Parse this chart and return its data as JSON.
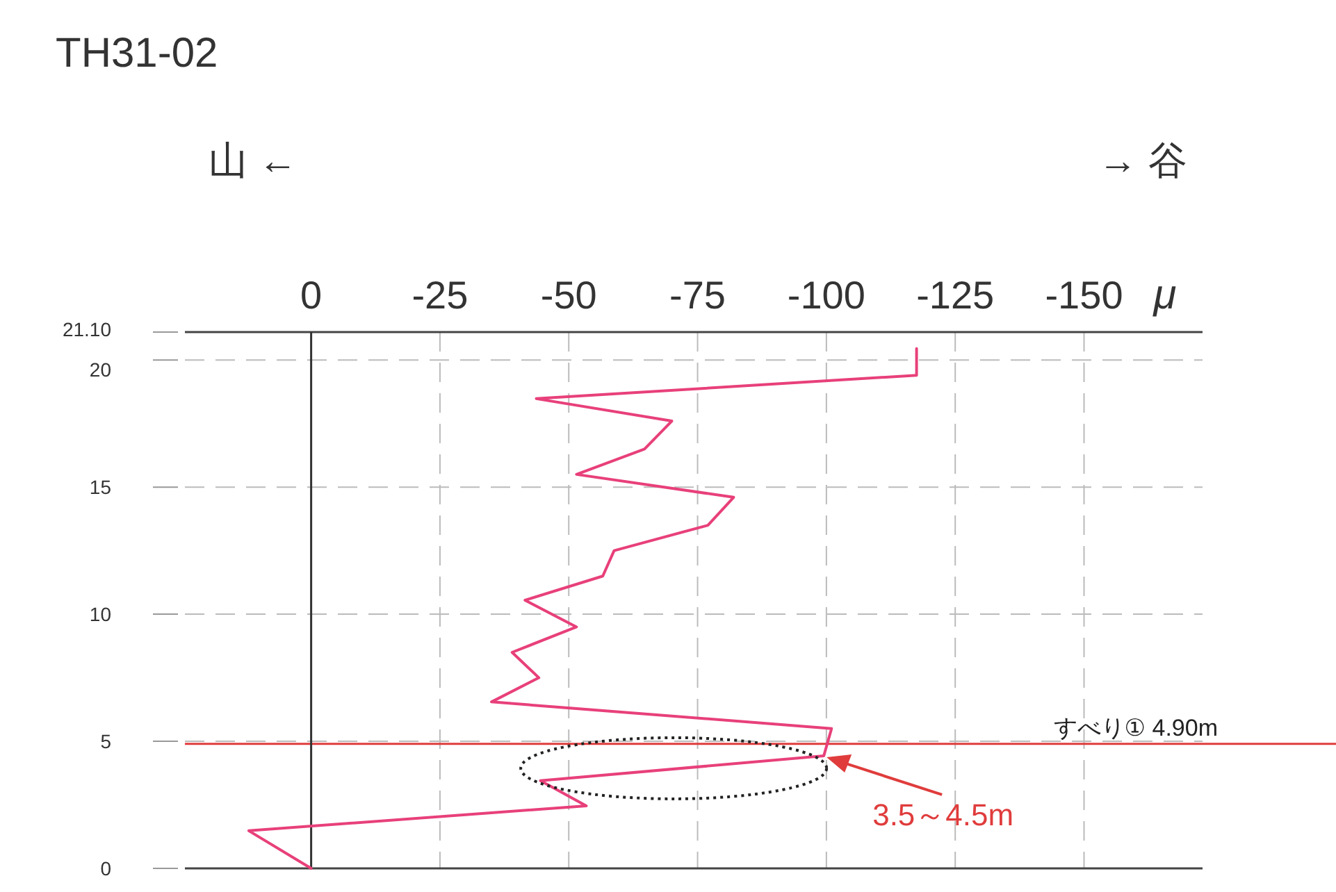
{
  "chart_data": {
    "type": "line",
    "title": "TH31-02",
    "xlabel": "μ",
    "annotations": [
      "山 ←",
      "→ 谷",
      {
        "text": "3.5～4.5m",
        "x": -99.5,
        "y": 4.43
      }
    ],
    "series": [
      {
        "color": "#e8407a",
        "x": [
          -117.5,
          -117.5,
          -43.7,
          -70,
          -64.7,
          -51.5,
          -82,
          -77,
          -58.8,
          -56.6,
          -41.5,
          -51.5,
          -39,
          -44.2,
          -35,
          -101,
          -99.5,
          -44.5,
          -53.4,
          12.1,
          0
        ],
        "values": [
          20.45,
          19.4,
          18.48,
          17.6,
          16.5,
          15.5,
          14.6,
          13.5,
          12.5,
          11.5,
          10.55,
          9.5,
          8.5,
          7.5,
          6.55,
          5.5,
          4.43,
          3.45,
          2.46,
          1.48,
          0
        ]
      }
    ],
    "xlim": [
      24.5,
      -173
    ],
    "xticks": [
      0,
      -25,
      -50,
      -75,
      -100,
      -125,
      -150
    ],
    "ylim": [
      0,
      21.1
    ],
    "yticks": [
      0,
      5,
      10,
      15,
      20,
      {
        "value": 21.1,
        "label": "21.10"
      }
    ],
    "ref_lines": [
      {
        "axis": "y",
        "value": 4.9,
        "label": "すべり① 4.90m",
        "color": "#e03c3c"
      },
      {
        "axis": "x",
        "value": 0,
        "color": "#333333"
      }
    ],
    "grid": true
  }
}
